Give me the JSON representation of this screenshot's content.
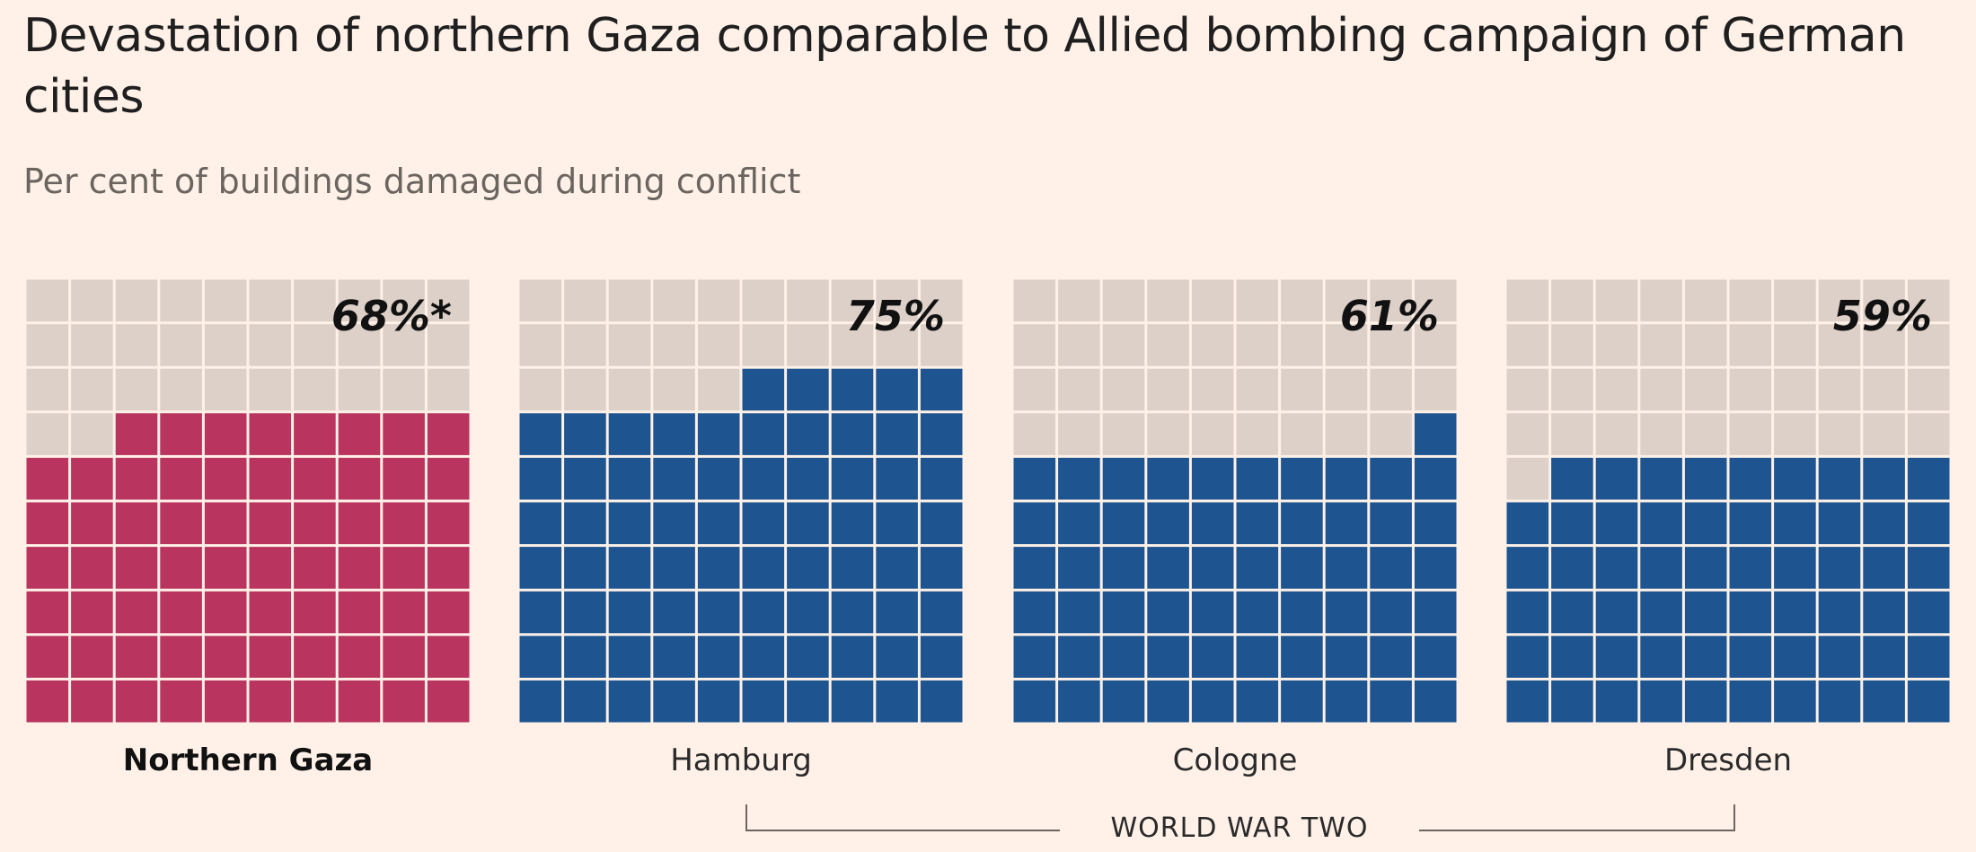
{
  "title": "Devastation of northern Gaza comparable to Allied bombing campaign of German cities",
  "subtitle": "Per cent of buildings damaged during conflict",
  "group_label": "WORLD WAR TWO",
  "colors": {
    "background": "#fff1e8",
    "empty_cell": "#ddd0c8",
    "gaza": "#b9345e",
    "ww2": "#1e5591",
    "gridline": "#fff1e8"
  },
  "chart_data": {
    "type": "waffle",
    "grid": "10x10",
    "unit": "per cent",
    "items": [
      {
        "name": "Northern Gaza",
        "value": 68,
        "label": "68%*",
        "color": "#b9345e",
        "highlight": true
      },
      {
        "name": "Hamburg",
        "value": 75,
        "label": "75%",
        "color": "#1e5591",
        "highlight": false
      },
      {
        "name": "Cologne",
        "value": 61,
        "label": "61%",
        "color": "#1e5591",
        "highlight": false
      },
      {
        "name": "Dresden",
        "value": 59,
        "label": "59%",
        "color": "#1e5591",
        "highlight": false
      }
    ]
  }
}
